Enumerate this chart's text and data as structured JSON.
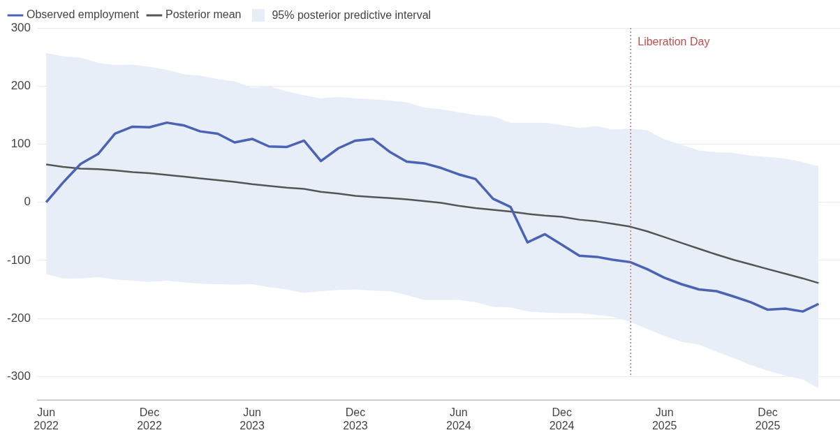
{
  "chart_data": {
    "type": "line",
    "x": [
      "2022-06",
      "2022-07",
      "2022-08",
      "2022-09",
      "2022-10",
      "2022-11",
      "2022-12",
      "2023-01",
      "2023-02",
      "2023-03",
      "2023-04",
      "2023-05",
      "2023-06",
      "2023-07",
      "2023-08",
      "2023-09",
      "2023-10",
      "2023-11",
      "2023-12",
      "2024-01",
      "2024-02",
      "2024-03",
      "2024-04",
      "2024-05",
      "2024-06",
      "2024-07",
      "2024-08",
      "2024-09",
      "2024-10",
      "2024-11",
      "2024-12",
      "2025-01",
      "2025-02",
      "2025-03",
      "2025-04",
      "2025-05",
      "2025-06",
      "2025-07",
      "2025-08",
      "2025-09",
      "2025-10",
      "2025-11",
      "2025-12",
      "2026-01",
      "2026-02",
      "2026-03"
    ],
    "series": [
      {
        "name": "Observed employment",
        "color": "#4a63b5",
        "values": [
          0,
          34,
          66,
          83,
          118,
          130,
          129,
          137,
          132,
          122,
          118,
          103,
          109,
          96,
          95,
          106,
          71,
          93,
          106,
          109,
          86,
          70,
          67,
          59,
          48,
          40,
          6,
          -8,
          -69,
          -55,
          -73,
          -92,
          -94,
          -99,
          -103,
          -115,
          -130,
          -141,
          -150,
          -153,
          -162,
          -172,
          -185,
          -183,
          -188,
          -175
        ]
      },
      {
        "name": "Posterior mean",
        "color": "#555555",
        "values": [
          65,
          61,
          58,
          57,
          55,
          52,
          50,
          47,
          44,
          41,
          38,
          35,
          31,
          28,
          25,
          23,
          18,
          15,
          11,
          9,
          7,
          5,
          2,
          -1,
          -6,
          -10,
          -13,
          -16,
          -20,
          -23,
          -25,
          -30,
          -33,
          -37,
          -42,
          -50,
          -60,
          -70,
          -80,
          -90,
          -99,
          -107,
          -115,
          -123,
          -131,
          -139
        ],
        "upper": [
          257,
          251,
          249,
          240,
          236,
          237,
          233,
          228,
          220,
          218,
          212,
          208,
          197,
          200,
          191,
          184,
          179,
          181,
          179,
          177,
          175,
          172,
          163,
          160,
          155,
          150,
          148,
          137,
          137,
          137,
          133,
          128,
          131,
          125,
          127,
          124,
          108,
          99,
          89,
          86,
          85,
          80,
          78,
          75,
          69,
          62
        ],
        "lower": [
          -124,
          -131,
          -131,
          -129,
          -133,
          -135,
          -137,
          -135,
          -138,
          -140,
          -141,
          -142,
          -141,
          -146,
          -150,
          -156,
          -153,
          -151,
          -150,
          -152,
          -153,
          -160,
          -168,
          -168,
          -168,
          -172,
          -180,
          -181,
          -188,
          -190,
          -191,
          -191,
          -194,
          -197,
          -206,
          -218,
          -230,
          -240,
          -245,
          -257,
          -268,
          -280,
          -290,
          -298,
          -305,
          -320
        ]
      }
    ],
    "annotations": [
      "95% posterior predictive interval"
    ],
    "xlim": [
      "2022-05-17",
      "2026-04-08"
    ],
    "xticks": [
      {
        "value": "2022-06",
        "label": "Jun 2022"
      },
      {
        "value": "2022-12",
        "label": "Dec 2022"
      },
      {
        "value": "2023-06",
        "label": "Jun 2023"
      },
      {
        "value": "2023-12",
        "label": "Dec 2023"
      },
      {
        "value": "2024-06",
        "label": "Jun 2024"
      },
      {
        "value": "2024-12",
        "label": "Dec 2024"
      },
      {
        "value": "2025-06",
        "label": "Jun 2025"
      },
      {
        "value": "2025-12",
        "label": "Dec 2025"
      }
    ],
    "ylim": [
      -340,
      300
    ],
    "yticks": [
      -300,
      -200,
      -100,
      0,
      100,
      200,
      300
    ],
    "grid": "y",
    "legend": "top left",
    "marker": "none",
    "line_style": "solid",
    "ref_lines": [
      {
        "axis": "x",
        "value": "2025-04-02",
        "label": "Liberation Day",
        "color": "#c0504d",
        "line_style": "dotted"
      }
    ]
  }
}
